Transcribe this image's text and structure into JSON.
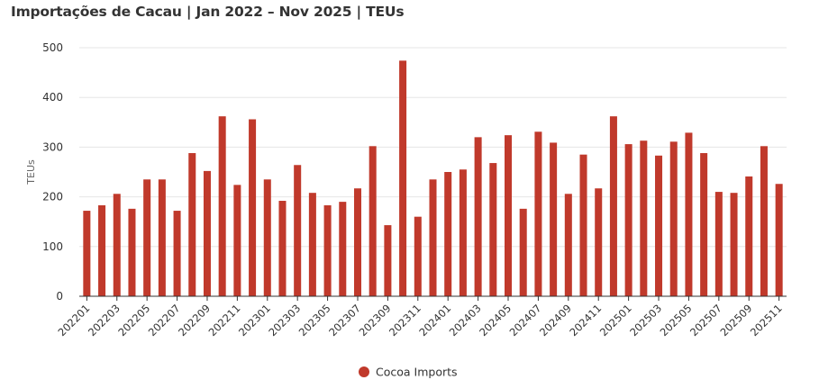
{
  "chart_data": {
    "type": "bar",
    "title": "Importações de Cacau | Jan 2022 – Nov 2025 | TEUs",
    "xlabel": "",
    "ylabel": "TEUs",
    "ylim": [
      0,
      500
    ],
    "yticks": [
      0,
      100,
      200,
      300,
      400,
      500
    ],
    "grid": true,
    "legend_position": "bottom",
    "color": "#c0392b",
    "categories": [
      "202201",
      "202202",
      "202203",
      "202204",
      "202205",
      "202206",
      "202207",
      "202208",
      "202209",
      "202210",
      "202211",
      "202212",
      "202301",
      "202302",
      "202303",
      "202304",
      "202305",
      "202306",
      "202307",
      "202308",
      "202309",
      "202310",
      "202311",
      "202312",
      "202401",
      "202402",
      "202403",
      "202404",
      "202405",
      "202406",
      "202407",
      "202408",
      "202409",
      "202410",
      "202411",
      "202412",
      "202501",
      "202502",
      "202503",
      "202504",
      "202505",
      "202506",
      "202507",
      "202508",
      "202509",
      "202510",
      "202511"
    ],
    "xtick_labels": [
      "202201",
      "202203",
      "202205",
      "202207",
      "202209",
      "202211",
      "202301",
      "202303",
      "202305",
      "202307",
      "202309",
      "202311",
      "202401",
      "202403",
      "202405",
      "202407",
      "202409",
      "202411",
      "202501",
      "202503",
      "202505",
      "202507",
      "202509",
      "202511"
    ],
    "series": [
      {
        "name": "Cocoa Imports",
        "values": [
          172,
          183,
          206,
          176,
          235,
          235,
          172,
          288,
          252,
          362,
          224,
          356,
          235,
          192,
          264,
          208,
          183,
          190,
          217,
          302,
          143,
          474,
          160,
          235,
          250,
          255,
          320,
          268,
          324,
          176,
          331,
          309,
          206,
          285,
          217,
          362,
          306,
          313,
          283,
          311,
          329,
          288,
          210,
          208,
          241,
          302,
          226
        ]
      }
    ]
  }
}
